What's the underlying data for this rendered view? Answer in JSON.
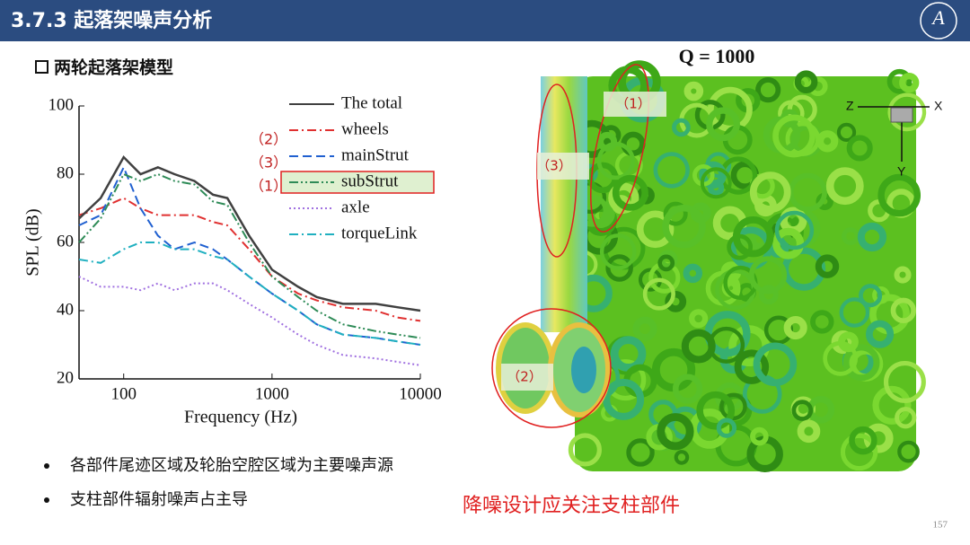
{
  "header": {
    "title": "3.7.3 起落架噪声分析"
  },
  "section": "两轮起落架模型",
  "chart_data": {
    "type": "line",
    "xlabel": "Frequency (Hz)",
    "ylabel": "SPL (dB)",
    "x": [
      50,
      70,
      100,
      130,
      170,
      220,
      300,
      400,
      500,
      700,
      1000,
      1500,
      2000,
      3000,
      5000,
      7000,
      10000
    ],
    "xscale": "log",
    "xlim": [
      50,
      10000
    ],
    "xticks": [
      100,
      1000,
      10000
    ],
    "ylim": [
      20,
      100
    ],
    "yticks": [
      20,
      40,
      60,
      80,
      100
    ],
    "series": [
      {
        "name": "The total",
        "color": "#404040",
        "dash": "solid",
        "values": [
          67,
          73,
          85,
          80,
          82,
          80,
          78,
          74,
          73,
          62,
          52,
          47,
          44,
          42,
          42,
          41,
          40
        ]
      },
      {
        "name": "wheels",
        "color": "#e03030",
        "dash": "dashdot",
        "values": [
          68,
          70,
          73,
          70,
          68,
          68,
          68,
          66,
          65,
          58,
          50,
          45,
          43,
          41,
          40,
          38,
          37
        ]
      },
      {
        "name": "mainStrut",
        "color": "#2060d0",
        "dash": "dashed",
        "values": [
          65,
          68,
          82,
          70,
          62,
          58,
          60,
          58,
          55,
          50,
          45,
          40,
          36,
          33,
          32,
          31,
          30
        ]
      },
      {
        "name": "subStrut",
        "color": "#2e8b57",
        "dash": "dashdotdot",
        "values": [
          60,
          67,
          80,
          78,
          80,
          78,
          77,
          72,
          71,
          60,
          50,
          44,
          40,
          36,
          34,
          33,
          32
        ]
      },
      {
        "name": "axle",
        "color": "#a070e0",
        "dash": "dotted",
        "values": [
          50,
          47,
          47,
          46,
          48,
          46,
          48,
          48,
          46,
          42,
          38,
          33,
          30,
          27,
          26,
          25,
          24
        ]
      },
      {
        "name": "torqueLink",
        "color": "#20b0c0",
        "dash": "dashdot",
        "values": [
          55,
          54,
          58,
          60,
          60,
          58,
          58,
          56,
          55,
          50,
          45,
          40,
          36,
          33,
          32,
          31,
          30
        ]
      }
    ],
    "annotations": [
      "（2）",
      "（3）",
      "（1）"
    ]
  },
  "figure": {
    "title": "Q = 1000",
    "labels": [
      "（1）",
      "（3）",
      "（2）"
    ],
    "axes": [
      "Z",
      "X",
      "Y"
    ]
  },
  "bullets": [
    "各部件尾迹区域及轮胎空腔区域为主要噪声源",
    "支柱部件辐射噪声占主导"
  ],
  "note": "降噪设计应关注支柱部件",
  "page_number": "157"
}
